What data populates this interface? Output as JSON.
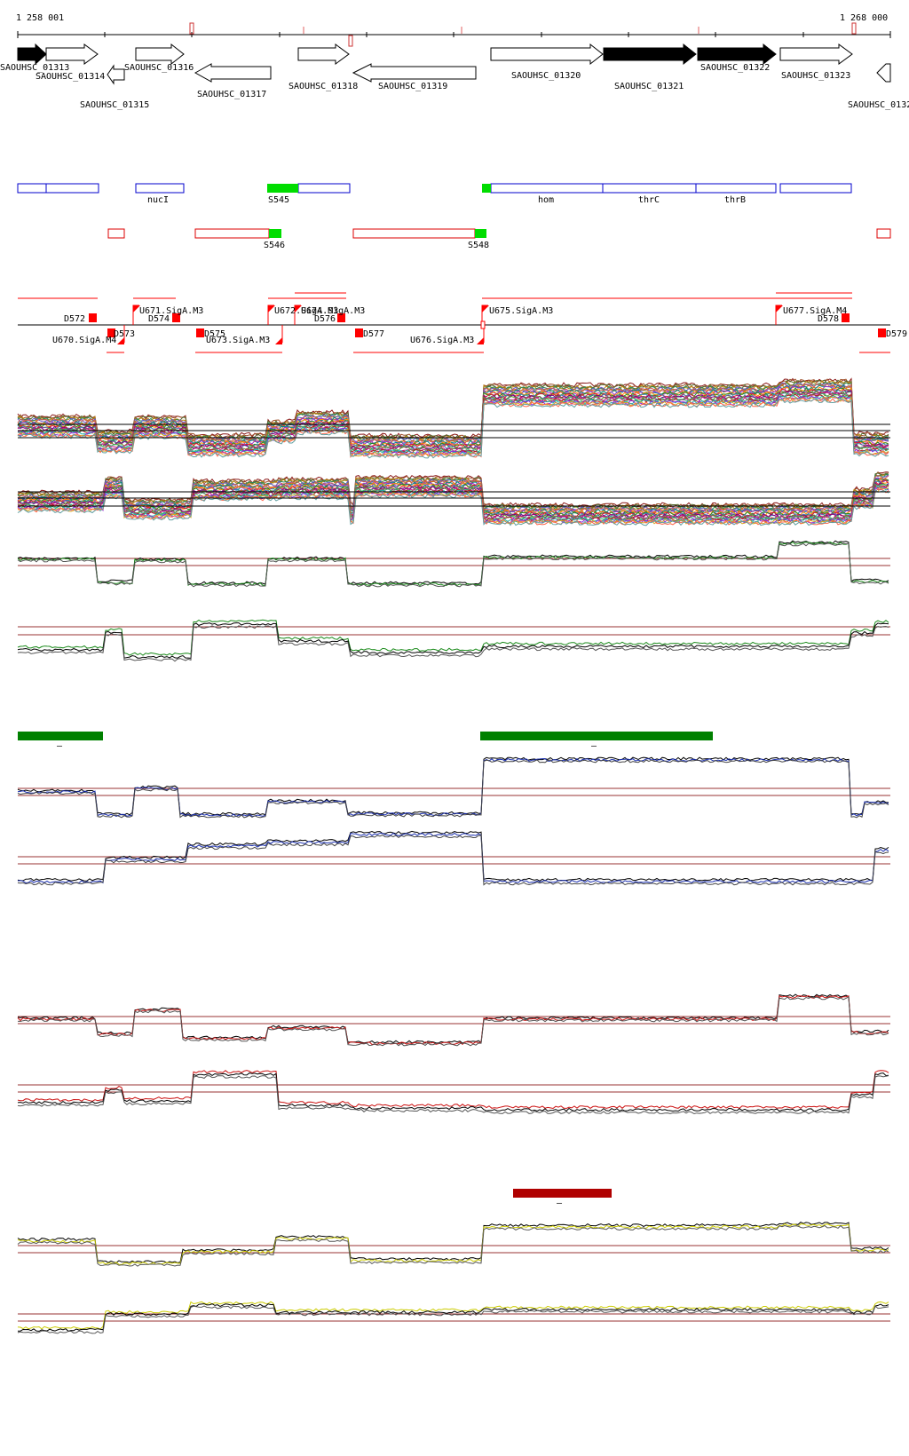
{
  "coords": {
    "start_label": "1 258 001",
    "end_label": "1 268 000"
  },
  "genes": [
    {
      "label": "SAOUHSC_01313",
      "strand": "+",
      "filled": true
    },
    {
      "label": "SAOUHSC_01314",
      "strand": "+",
      "filled": false
    },
    {
      "label": "SAOUHSC_01315",
      "strand": "-",
      "filled": false
    },
    {
      "label": "SAOUHSC_01316",
      "strand": "+",
      "filled": false
    },
    {
      "label": "SAOUHSC_01317",
      "strand": "-",
      "filled": false
    },
    {
      "label": "SAOUHSC_01318",
      "strand": "+",
      "filled": false
    },
    {
      "label": "SAOUHSC_01319",
      "strand": "-",
      "filled": false
    },
    {
      "label": "SAOUHSC_01320",
      "strand": "+",
      "filled": false
    },
    {
      "label": "SAOUHSC_01321",
      "strand": "+",
      "filled": true
    },
    {
      "label": "SAOUHSC_01322",
      "strand": "+",
      "filled": true
    },
    {
      "label": "SAOUHSC_01323",
      "strand": "+",
      "filled": false
    },
    {
      "label": "SAOUHSC_0132",
      "strand": "-",
      "filled": false
    }
  ],
  "gene_names": {
    "nucI": "nucI",
    "hom": "hom",
    "thrC": "thrC",
    "thrB": "thrB"
  },
  "segments": {
    "S545": "S545",
    "S546": "S546",
    "S548": "S548"
  },
  "promoters": {
    "U670": "U670.SigA.M4",
    "U671": "U671.SigA.M3",
    "U672": "U672.SigA.M3",
    "U674": "U674.SigA.M3",
    "U673": "U673.SigA.M3",
    "U675": "U675.SigA.M3",
    "U676": "U676.SigA.M3",
    "U677": "U677.SigA.M4"
  },
  "terminators": {
    "D572": "D572",
    "D573": "D573",
    "D574": "D574",
    "D575": "D575",
    "D576": "D576",
    "D577": "D577",
    "D578": "D578",
    "D579": "D579"
  },
  "condition_markers": {
    "green_1": "–",
    "green_2": "–",
    "red_1": "–"
  },
  "colors": {
    "gene_filled": "#000000",
    "annotation_blue": "#0000cc",
    "annotation_red": "#dd0000",
    "segment_green": "#00dd00",
    "promoter_red": "#ff0000",
    "reference_line": "#993333",
    "profile_green": "#1a8a1a",
    "profile_blue": "#1a2fb0",
    "profile_red": "#cc1111",
    "profile_yellow": "#cccc00",
    "bar_green": "#008000",
    "bar_darkred": "#b00000"
  }
}
